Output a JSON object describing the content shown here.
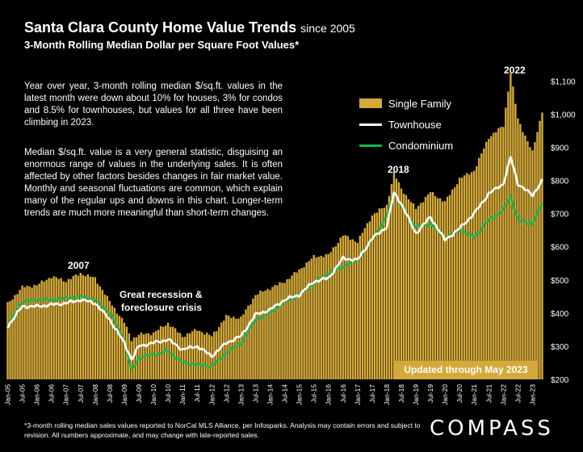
{
  "title": "Santa Clara County Home Value Trends",
  "title_suffix": "since 2005",
  "subtitle": "3-Month Rolling Median Dollar per Square Foot Values*",
  "notes": [
    "Year over year, 3-month rolling median $/sq.ft. values in the latest month were down about 10% for houses, 3% for condos and 8.5% for townhouses, but values for all three have been climbing in 2023.",
    "Median $/sq.ft. value is a very general statistic, disguising an enormous range of values in the underlying sales. It is often affected by other factors besides changes in fair market value. Monthly and seasonal fluctuations are common, which explain many of the regular ups and downs in this chart. Longer-term trends are much more meaningful than short-term changes."
  ],
  "annotations": {
    "y2007": "2007",
    "recession": "Great recession &",
    "recession2": "foreclosure crisis",
    "y2018": "2018",
    "y2022": "2022"
  },
  "updated": "Updated through May 2023",
  "footnote": "*3-month rolling median sales values reported to NorCal MLS Alliance, per Infosparks. Analysis may contain errors and subject to revision. All numbers approximate, and may change with late-reported sales.",
  "brand": "COMPASS",
  "colors": {
    "single_family": "#D4A93A",
    "townhouse": "#FFFFFF",
    "condominium": "#1DB34A",
    "background": "#000000"
  },
  "chart_data": {
    "type": "bar",
    "start": "Jan-05",
    "months": 221,
    "x_tick_labels": [
      "Jan-05",
      "Jul-05",
      "Jan-06",
      "Jul-06",
      "Jan-07",
      "Jul-07",
      "Jan-08",
      "Jul-08",
      "Jan-09",
      "Jul-09",
      "Jan-10",
      "Jul-10",
      "Jan-11",
      "Jul-11",
      "Jan-12",
      "Jul-12",
      "Jan-13",
      "Jul-13",
      "Jan-14",
      "Jul-14",
      "Jan-15",
      "Jul-15",
      "Jan-16",
      "Jul-16",
      "Jan-17",
      "Jul-17",
      "Jan-18",
      "Jul-18",
      "Jan-19",
      "Jul-19",
      "Jan-20",
      "Jul-20",
      "Jan-21",
      "Jul-21",
      "Jan-22",
      "Jul-22",
      "Jan-23"
    ],
    "y_tick_labels": [
      "$200",
      "$300",
      "$400",
      "$500",
      "$600",
      "$700",
      "$800",
      "$900",
      "$1,000",
      "$1,100"
    ],
    "ylim": [
      200,
      1130
    ],
    "legend": "right-top",
    "series": [
      {
        "name": "Single Family",
        "kind": "bar",
        "anchors": [
          [
            "Jan-05",
            428
          ],
          [
            "Jul-05",
            478
          ],
          [
            "Jan-06",
            484
          ],
          [
            "Jul-06",
            510
          ],
          [
            "Jan-07",
            497
          ],
          [
            "Jul-07",
            520
          ],
          [
            "Jan-08",
            505
          ],
          [
            "Jul-08",
            435
          ],
          [
            "Jan-09",
            372
          ],
          [
            "Apr-09",
            320
          ],
          [
            "Jul-09",
            335
          ],
          [
            "Jan-10",
            340
          ],
          [
            "Jul-10",
            370
          ],
          [
            "Jan-11",
            330
          ],
          [
            "Jul-11",
            350
          ],
          [
            "Jan-12",
            330
          ],
          [
            "Jul-12",
            390
          ],
          [
            "Jan-13",
            385
          ],
          [
            "Jul-13",
            455
          ],
          [
            "Jan-14",
            475
          ],
          [
            "Jul-14",
            495
          ],
          [
            "Jan-15",
            530
          ],
          [
            "Jul-15",
            570
          ],
          [
            "Jan-16",
            575
          ],
          [
            "Jul-16",
            635
          ],
          [
            "Jan-17",
            615
          ],
          [
            "Jul-17",
            695
          ],
          [
            "Jan-18",
            725
          ],
          [
            "Apr-18",
            822
          ],
          [
            "Jul-18",
            775
          ],
          [
            "Jan-19",
            715
          ],
          [
            "Jul-19",
            765
          ],
          [
            "Jan-20",
            735
          ],
          [
            "Jul-20",
            805
          ],
          [
            "Jan-21",
            830
          ],
          [
            "Jul-21",
            930
          ],
          [
            "Jan-22",
            965
          ],
          [
            "Apr-22",
            1125
          ],
          [
            "Jul-22",
            985
          ],
          [
            "Jan-23",
            885
          ],
          [
            "May-23",
            1010
          ]
        ]
      },
      {
        "name": "Townhouse",
        "kind": "line",
        "anchors": [
          [
            "Jan-05",
            360
          ],
          [
            "Jul-05",
            420
          ],
          [
            "Jan-06",
            420
          ],
          [
            "Jul-06",
            425
          ],
          [
            "Jan-07",
            430
          ],
          [
            "Jul-07",
            440
          ],
          [
            "Jan-08",
            430
          ],
          [
            "Jul-08",
            380
          ],
          [
            "Jan-09",
            310
          ],
          [
            "Apr-09",
            260
          ],
          [
            "Jul-09",
            300
          ],
          [
            "Jan-10",
            310
          ],
          [
            "Jul-10",
            320
          ],
          [
            "Jan-11",
            290
          ],
          [
            "Jul-11",
            300
          ],
          [
            "Jan-12",
            270
          ],
          [
            "Jul-12",
            310
          ],
          [
            "Jan-13",
            330
          ],
          [
            "Jul-13",
            395
          ],
          [
            "Jan-14",
            410
          ],
          [
            "Jul-14",
            440
          ],
          [
            "Jan-15",
            455
          ],
          [
            "Jul-15",
            495
          ],
          [
            "Jan-16",
            505
          ],
          [
            "Jul-16",
            565
          ],
          [
            "Jan-17",
            560
          ],
          [
            "Jul-17",
            625
          ],
          [
            "Jan-18",
            660
          ],
          [
            "Apr-18",
            762
          ],
          [
            "Jul-18",
            730
          ],
          [
            "Jan-19",
            640
          ],
          [
            "Jul-19",
            690
          ],
          [
            "Jan-20",
            620
          ],
          [
            "Jul-20",
            655
          ],
          [
            "Jan-21",
            700
          ],
          [
            "Jul-21",
            760
          ],
          [
            "Jan-22",
            790
          ],
          [
            "Apr-22",
            870
          ],
          [
            "Jul-22",
            790
          ],
          [
            "Jan-23",
            755
          ],
          [
            "May-23",
            800
          ]
        ]
      },
      {
        "name": "Condominium",
        "kind": "line",
        "anchors": [
          [
            "Jan-05",
            360
          ],
          [
            "Jul-05",
            435
          ],
          [
            "Jan-06",
            440
          ],
          [
            "Jul-06",
            440
          ],
          [
            "Jan-07",
            445
          ],
          [
            "Jul-07",
            450
          ],
          [
            "Jan-08",
            440
          ],
          [
            "Jul-08",
            400
          ],
          [
            "Jan-09",
            320
          ],
          [
            "Apr-09",
            225
          ],
          [
            "Jul-09",
            265
          ],
          [
            "Jan-10",
            275
          ],
          [
            "Jul-10",
            285
          ],
          [
            "Jan-11",
            250
          ],
          [
            "Jul-11",
            245
          ],
          [
            "Jan-12",
            240
          ],
          [
            "Jul-12",
            280
          ],
          [
            "Jan-13",
            310
          ],
          [
            "Jul-13",
            380
          ],
          [
            "Jan-14",
            400
          ],
          [
            "Jul-14",
            435
          ],
          [
            "Jan-15",
            455
          ],
          [
            "Jul-15",
            490
          ],
          [
            "Jan-16",
            520
          ],
          [
            "Jul-16",
            540
          ],
          [
            "Jan-17",
            560
          ],
          [
            "Jul-17",
            620
          ],
          [
            "Jan-18",
            690
          ],
          [
            "Apr-18",
            765
          ],
          [
            "Jul-18",
            720
          ],
          [
            "Jan-19",
            660
          ],
          [
            "Jul-19",
            670
          ],
          [
            "Jan-20",
            625
          ],
          [
            "Jul-20",
            650
          ],
          [
            "Jan-21",
            630
          ],
          [
            "Jul-21",
            680
          ],
          [
            "Jan-22",
            710
          ],
          [
            "Apr-22",
            752
          ],
          [
            "Jul-22",
            680
          ],
          [
            "Jan-23",
            670
          ],
          [
            "May-23",
            730
          ]
        ]
      }
    ]
  }
}
